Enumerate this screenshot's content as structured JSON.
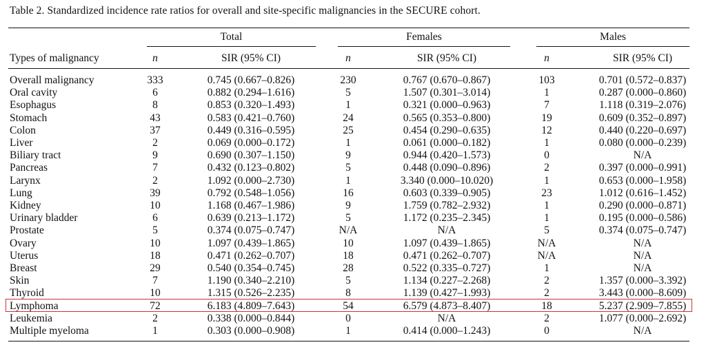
{
  "caption": "Table 2.  Standardized incidence rate ratios for overall and site-specific malignancies in the SECURE cohort.",
  "groups": [
    "Total",
    "Females",
    "Males"
  ],
  "headers": {
    "type": "Types of malignancy",
    "n": "n",
    "sir": "SIR (95% CI)"
  },
  "rows": [
    {
      "type": "Overall malignancy",
      "total_n": "333",
      "total_sir": "0.745 (0.667–0.826)",
      "female_n": "230",
      "female_sir": "0.767 (0.670–0.867)",
      "male_n": "103",
      "male_sir": "0.701 (0.572–0.837)"
    },
    {
      "type": "Oral cavity",
      "total_n": "6",
      "total_sir": "0.882 (0.294–1.616)",
      "female_n": "5",
      "female_sir": "1.507 (0.301–3.014)",
      "male_n": "1",
      "male_sir": "0.287 (0.000–0.860)"
    },
    {
      "type": "Esophagus",
      "total_n": "8",
      "total_sir": "0.853 (0.320–1.493)",
      "female_n": "1",
      "female_sir": "0.321 (0.000–0.963)",
      "male_n": "7",
      "male_sir": "1.118 (0.319–2.076)"
    },
    {
      "type": "Stomach",
      "total_n": "43",
      "total_sir": "0.583 (0.421–0.760)",
      "female_n": "24",
      "female_sir": "0.565 (0.353–0.800)",
      "male_n": "19",
      "male_sir": "0.609 (0.352–0.897)"
    },
    {
      "type": "Colon",
      "total_n": "37",
      "total_sir": "0.449 (0.316–0.595)",
      "female_n": "25",
      "female_sir": "0.454 (0.290–0.635)",
      "male_n": "12",
      "male_sir": "0.440 (0.220–0.697)"
    },
    {
      "type": "Liver",
      "total_n": "2",
      "total_sir": "0.069 (0.000–0.172)",
      "female_n": "1",
      "female_sir": "0.061 (0.000–0.182)",
      "male_n": "1",
      "male_sir": "0.080 (0.000–0.239)"
    },
    {
      "type": "Biliary tract",
      "total_n": "9",
      "total_sir": "0.690 (0.307–1.150)",
      "female_n": "9",
      "female_sir": "0.944 (0.420–1.573)",
      "male_n": "0",
      "male_sir": "N/A"
    },
    {
      "type": "Pancreas",
      "total_n": "7",
      "total_sir": "0.432 (0.123–0.802)",
      "female_n": "5",
      "female_sir": "0.448 (0.090–0.896)",
      "male_n": "2",
      "male_sir": "0.397 (0.000–0.991)"
    },
    {
      "type": "Larynx",
      "total_n": "2",
      "total_sir": "1.092 (0.000–2.730)",
      "female_n": "1",
      "female_sir": "3.340 (0.000–10.020)",
      "male_n": "1",
      "male_sir": "0.653 (0.000–1.958)"
    },
    {
      "type": "Lung",
      "total_n": "39",
      "total_sir": "0.792 (0.548–1.056)",
      "female_n": "16",
      "female_sir": "0.603 (0.339–0.905)",
      "male_n": "23",
      "male_sir": "1.012 (0.616–1.452)"
    },
    {
      "type": "Kidney",
      "total_n": "10",
      "total_sir": "1.168 (0.467–1.986)",
      "female_n": "9",
      "female_sir": "1.759 (0.782–2.932)",
      "male_n": "1",
      "male_sir": "0.290 (0.000–0.871)"
    },
    {
      "type": "Urinary bladder",
      "total_n": "6",
      "total_sir": "0.639 (0.213–1.172)",
      "female_n": "5",
      "female_sir": "1.172 (0.235–2.345)",
      "male_n": "1",
      "male_sir": "0.195 (0.000–0.586)"
    },
    {
      "type": "Prostate",
      "total_n": "5",
      "total_sir": "0.374 (0.075–0.747)",
      "female_n": "N/A",
      "female_sir": "N/A",
      "male_n": "5",
      "male_sir": "0.374 (0.075–0.747)"
    },
    {
      "type": "Ovary",
      "total_n": "10",
      "total_sir": "1.097 (0.439–1.865)",
      "female_n": "10",
      "female_sir": "1.097 (0.439–1.865)",
      "male_n": "N/A",
      "male_sir": "N/A"
    },
    {
      "type": "Uterus",
      "total_n": "18",
      "total_sir": "0.471 (0.262–0.707)",
      "female_n": "18",
      "female_sir": "0.471 (0.262–0.707)",
      "male_n": "N/A",
      "male_sir": "N/A"
    },
    {
      "type": "Breast",
      "total_n": "29",
      "total_sir": "0.540 (0.354–0.745)",
      "female_n": "28",
      "female_sir": "0.522 (0.335–0.727)",
      "male_n": "1",
      "male_sir": "N/A"
    },
    {
      "type": "Skin",
      "total_n": "7",
      "total_sir": "1.190 (0.340–2.210)",
      "female_n": "5",
      "female_sir": "1.134 (0.227–2.268)",
      "male_n": "2",
      "male_sir": "1.357 (0.000–3.392)"
    },
    {
      "type": "Thyroid",
      "total_n": "10",
      "total_sir": "1.315 (0.526–2.235)",
      "female_n": "8",
      "female_sir": "1.139 (0.427–1.993)",
      "male_n": "2",
      "male_sir": "3.443 (0.000–8.609)"
    },
    {
      "type": "Lymphoma",
      "total_n": "72",
      "total_sir": "6.183 (4.809–7.643)",
      "female_n": "54",
      "female_sir": "6.579 (4.873–8.407)",
      "male_n": "18",
      "male_sir": "5.237 (2.909–7.855)"
    },
    {
      "type": "Leukemia",
      "total_n": "2",
      "total_sir": "0.338 (0.000–0.844)",
      "female_n": "0",
      "female_sir": "N/A",
      "male_n": "2",
      "male_sir": "1.077 (0.000–2.692)"
    },
    {
      "type": "Multiple myeloma",
      "total_n": "1",
      "total_sir": "0.303 (0.000–0.908)",
      "female_n": "1",
      "female_sir": "0.414 (0.000–1.243)",
      "male_n": "0",
      "male_sir": "N/A"
    }
  ],
  "highlight": {
    "row_type": "Lymphoma",
    "color": "#c8323c"
  }
}
